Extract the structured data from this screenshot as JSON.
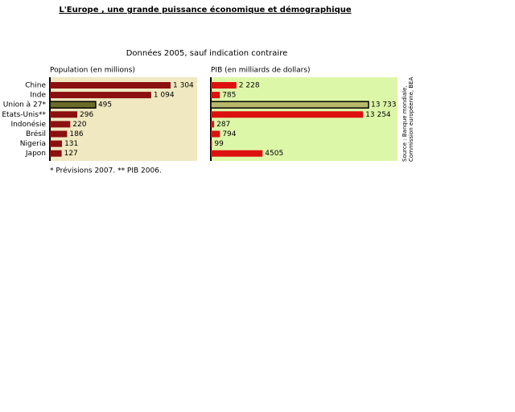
{
  "chart_data": {
    "type": "bar",
    "title": "L'Europe , une grande puissance économique et démographique",
    "subtitle": "Données 2005, sauf indication contraire",
    "categories": [
      "Chine",
      "Inde",
      "Union à 27*",
      "Etats-Unis**",
      "Indonésie",
      "Brésil",
      "Nigeria",
      "Japon"
    ],
    "series": [
      {
        "name": "Population (en millions)",
        "background": "#f0e8c0",
        "colors": [
          "#8b1010",
          "#8b1010",
          "#6b6b2a",
          "#8b1010",
          "#8b1010",
          "#8b1010",
          "#8b1010",
          "#8b1010"
        ],
        "values": [
          1304,
          1094,
          495,
          296,
          220,
          186,
          131,
          127
        ],
        "value_labels": [
          "1 304",
          "1 094",
          "495",
          "296",
          "220",
          "186",
          "131",
          "127"
        ]
      },
      {
        "name": "PIB (en milliards de dollars)",
        "background": "#ddf7a8",
        "colors": [
          "#dd1010",
          "#dd1010",
          "#b8b86a",
          "#dd1010",
          "#dd1010",
          "#dd1010",
          "#dd1010",
          "#dd1010"
        ],
        "values": [
          2228,
          785,
          13733,
          13254,
          287,
          794,
          99,
          4505
        ],
        "value_labels": [
          "2 228",
          "785",
          "13 733",
          "13 254",
          "287",
          "794",
          "99",
          "4505"
        ]
      }
    ],
    "footnote": "* Prévisions 2007. ** PIB 2006.",
    "source": [
      "Source : Banque mondiale,",
      "Commission européenne, BEA"
    ]
  }
}
